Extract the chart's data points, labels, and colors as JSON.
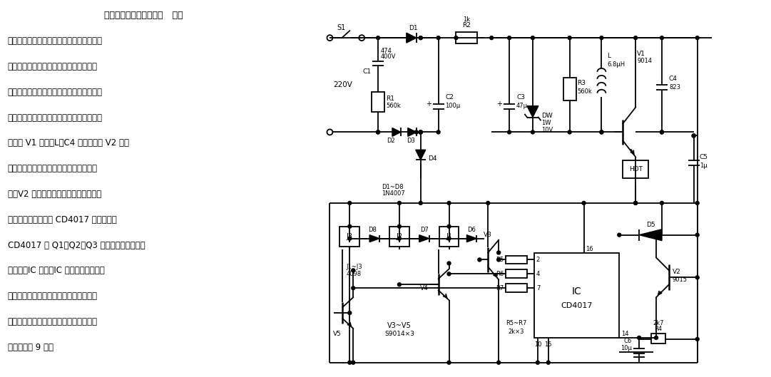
{
  "bg_color": "#ffffff",
  "lw": 1.3,
  "title_text": "亚超声波电扇调速遥控器",
  "desc_lines": [
    "亚超声波电扇调速遥控器   可对",
    "电风扇实现遥控开关、调速，也可实现对其",
    "他家用开关的遥控。其主要特点是发射端",
    "采用亚超声发射器，无方向性限制，不需电",
    "源，经久耑用。压电蜂鸣器收到的亚超声波",
    "信号经 V1 放大，L、C4 选频，再经 V2 放大",
    "并输出脉冲。每次操作时，手捾一下发射",
    "器、V2 集电极就输出一个正脉冲触发信",
    "号，由十进制计数器 CD4017 计数。采用",
    "CD4017 的 Q1、Q2、Q3 挡位。当第四次信号",
    "到来时，IC 清零。IC 控制三极管推动继",
    "电器。继电器的触点接入原调速器的调速",
    "线圈从而改变电风扇的速度。电路稍加修",
    "改可扩充为 9 路。"
  ]
}
